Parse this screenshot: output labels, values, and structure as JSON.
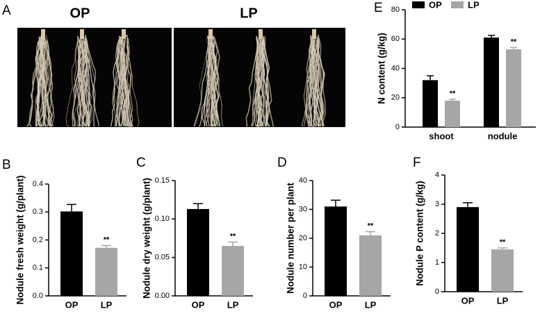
{
  "photo": {
    "panel": "A",
    "labels": [
      "OP",
      "LP"
    ]
  },
  "chart_data": [
    {
      "type": "bar",
      "panel": "B",
      "y_label": "Nodule fresh weight (g/plant)",
      "categories": [
        "OP",
        "LP"
      ],
      "values": [
        0.302,
        0.172
      ],
      "errors": [
        0.025,
        0.008
      ],
      "colors": [
        "#000000",
        "#a6a6a6"
      ],
      "ylim": [
        0,
        0.4
      ],
      "yticks": [
        {
          "value": 0,
          "label": "0.0"
        },
        0.1,
        0.2,
        0.3,
        0.4
      ],
      "annotations": [
        {
          "text": "**",
          "category": "LP"
        }
      ]
    },
    {
      "type": "bar",
      "panel": "C",
      "y_label": "Nodule dry weight (g/plant)",
      "categories": [
        "OP",
        "LP"
      ],
      "values": [
        0.113,
        0.065
      ],
      "errors": [
        0.007,
        0.005
      ],
      "colors": [
        "#000000",
        "#a6a6a6"
      ],
      "ylim": [
        0,
        0.15
      ],
      "yticks": [
        {
          "value": 0,
          "label": "0.00"
        },
        0.05,
        {
          "value": 0.1,
          "label": "0.10"
        },
        0.15
      ],
      "annotations": [
        {
          "text": "**",
          "category": "LP"
        }
      ]
    },
    {
      "type": "bar",
      "panel": "D",
      "y_label": "Nodule number per plant",
      "categories": [
        "OP",
        "LP"
      ],
      "values": [
        31,
        21
      ],
      "errors": [
        2.2,
        1.3
      ],
      "colors": [
        "#000000",
        "#a6a6a6"
      ],
      "ylim": [
        0,
        40
      ],
      "yticks": [
        0,
        10,
        20,
        30,
        40
      ],
      "annotations": [
        {
          "text": "**",
          "category": "LP"
        }
      ]
    },
    {
      "type": "grouped_bar",
      "panel": "E",
      "y_label": "N content (g/kg)",
      "categories": [
        "shoot",
        "nodule"
      ],
      "series": [
        {
          "name": "OP",
          "color": "#000000",
          "values": [
            32,
            61
          ],
          "errors": [
            3,
            1.5
          ]
        },
        {
          "name": "LP",
          "color": "#a6a6a6",
          "values": [
            18,
            53
          ],
          "errors": [
            1,
            1.2
          ]
        }
      ],
      "ylim": [
        0,
        80
      ],
      "yticks": [
        0,
        20,
        40,
        60,
        80
      ],
      "legend": "top",
      "annotations": [
        {
          "text": "**",
          "series": "LP",
          "category": "shoot"
        },
        {
          "text": "**",
          "series": "LP",
          "category": "nodule"
        }
      ]
    },
    {
      "type": "bar",
      "panel": "F",
      "y_label": "Nodule P content (g/kg)",
      "categories": [
        "OP",
        "LP"
      ],
      "values": [
        2.9,
        1.45
      ],
      "errors": [
        0.15,
        0.05
      ],
      "colors": [
        "#000000",
        "#a6a6a6"
      ],
      "ylim": [
        0,
        4
      ],
      "yticks": [
        0,
        1,
        2,
        3,
        4
      ],
      "annotations": [
        {
          "text": "**",
          "category": "LP"
        }
      ]
    }
  ]
}
